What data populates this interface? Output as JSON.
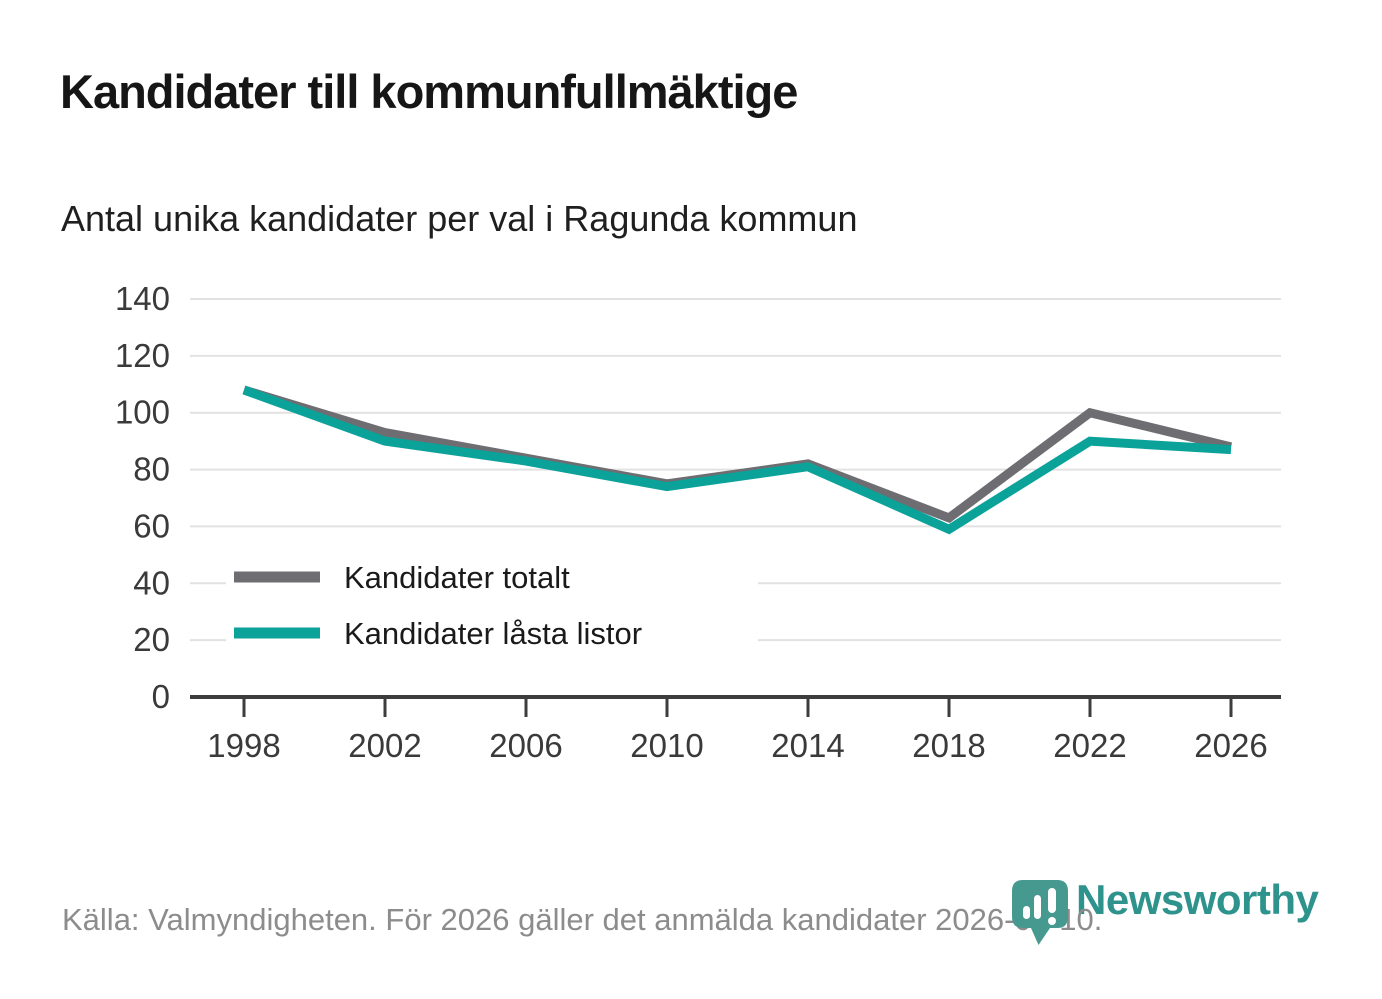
{
  "header": {
    "title": "Kandidater till kommunfullmäktige",
    "subtitle": "Antal unika kandidater per val i Ragunda kommun"
  },
  "chart_data": {
    "type": "line",
    "title": "Kandidater till kommunfullmäktige",
    "subtitle": "Antal unika kandidater per val i Ragunda kommun",
    "x": [
      1998,
      2002,
      2006,
      2010,
      2014,
      2018,
      2022,
      2026
    ],
    "series": [
      {
        "name": "Kandidater totalt",
        "color": "#6e6e72",
        "values": [
          108,
          93,
          84,
          75,
          82,
          63,
          100,
          88
        ]
      },
      {
        "name": "Kandidater låsta listor",
        "color": "#0ba29a",
        "values": [
          108,
          90,
          83,
          74,
          81,
          59,
          90,
          87
        ]
      }
    ],
    "ylim": [
      0,
      140
    ],
    "yticks": [
      0,
      20,
      40,
      60,
      80,
      100,
      120,
      140
    ],
    "grid": true,
    "legend_position": "inside-bottom-left"
  },
  "footer": {
    "source": "Källa: Valmyndigheten. För 2026 gäller det anmälda kandidater 2026-04-10.",
    "brand": "Newsworthy"
  },
  "colors": {
    "series_gray": "#6e6e72",
    "series_teal": "#0ba29a",
    "grid": "#e2e2e2",
    "axis": "#3d3d3d",
    "tick_label": "#3a3a3a",
    "legend_text": "#1a1a1a",
    "source_gray": "#8c8c8c",
    "logo_pin_teal": "#45998f",
    "logo_wordmark_teal": "#2e938c"
  }
}
